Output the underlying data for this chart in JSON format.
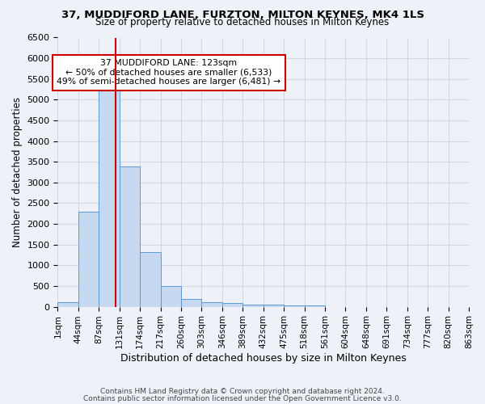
{
  "title": "37, MUDDIFORD LANE, FURZTON, MILTON KEYNES, MK4 1LS",
  "subtitle": "Size of property relative to detached houses in Milton Keynes",
  "xlabel": "Distribution of detached houses by size in Milton Keynes",
  "ylabel": "Number of detached properties",
  "footer_line1": "Contains HM Land Registry data © Crown copyright and database right 2024.",
  "footer_line2": "Contains public sector information licensed under the Open Government Licence v3.0.",
  "bin_labels": [
    "1sqm",
    "44sqm",
    "87sqm",
    "131sqm",
    "174sqm",
    "217sqm",
    "260sqm",
    "303sqm",
    "346sqm",
    "389sqm",
    "432sqm",
    "475sqm",
    "518sqm",
    "561sqm",
    "604sqm",
    "648sqm",
    "691sqm",
    "734sqm",
    "777sqm",
    "820sqm",
    "863sqm"
  ],
  "bar_values": [
    100,
    2300,
    5400,
    3380,
    1320,
    490,
    190,
    100,
    80,
    60,
    50,
    40,
    30,
    0,
    0,
    0,
    0,
    0,
    0,
    0
  ],
  "bar_color": "#c6d9f0",
  "bar_edge_color": "#5b9bd5",
  "grid_color": "#d0d8e8",
  "background_color": "#eef2f8",
  "vline_color": "#cc0000",
  "annotation_text": "37 MUDDIFORD LANE: 123sqm\n← 50% of detached houses are smaller (6,533)\n49% of semi-detached houses are larger (6,481) →",
  "annotation_box_color": "#ffffff",
  "annotation_box_edge": "#cc0000",
  "ylim": [
    0,
    6500
  ],
  "yticks": [
    0,
    500,
    1000,
    1500,
    2000,
    2500,
    3000,
    3500,
    4000,
    4500,
    5000,
    5500,
    6000,
    6500
  ]
}
